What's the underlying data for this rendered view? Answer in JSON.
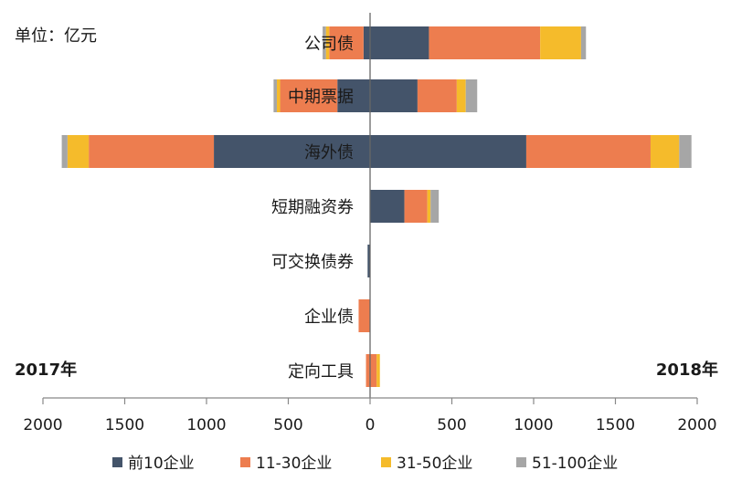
{
  "chart_data": {
    "type": "bar",
    "orientation": "horizontal-diverging",
    "unit_label": "单位：亿元",
    "left_label": "2017年",
    "right_label": "2018年",
    "categories": [
      "公司债",
      "中期票据",
      "海外债",
      "短期融资券",
      "可交换债券",
      "企业债",
      "定向工具"
    ],
    "series": [
      {
        "name": "前10企业",
        "color": "#44546a",
        "values_2017": [
          40,
          200,
          955,
          0,
          15,
          0,
          0
        ],
        "values_2018": [
          360,
          290,
          955,
          210,
          0,
          0,
          0
        ]
      },
      {
        "name": "11-30企业",
        "color": "#ed7d4f",
        "values_2017": [
          210,
          350,
          765,
          0,
          0,
          70,
          25
        ],
        "values_2018": [
          680,
          240,
          760,
          140,
          0,
          0,
          40
        ]
      },
      {
        "name": "31-50企业",
        "color": "#f5bb2b",
        "values_2017": [
          20,
          20,
          130,
          0,
          0,
          0,
          0
        ],
        "values_2018": [
          250,
          55,
          175,
          20,
          0,
          0,
          20
        ]
      },
      {
        "name": "51-100企业",
        "color": "#a6a6a6",
        "values_2017": [
          20,
          20,
          35,
          0,
          0,
          0,
          0
        ],
        "values_2018": [
          30,
          70,
          75,
          50,
          0,
          0,
          0
        ]
      }
    ],
    "xlim": [
      -2000,
      2000
    ],
    "xticks": [
      -2000,
      -1500,
      -1000,
      -500,
      0,
      500,
      1000,
      1500,
      2000
    ],
    "xtick_labels": [
      "2000",
      "1500",
      "1000",
      "500",
      "0",
      "500",
      "1000",
      "1500",
      "2000"
    ],
    "legend_position": "bottom",
    "grid": false
  }
}
